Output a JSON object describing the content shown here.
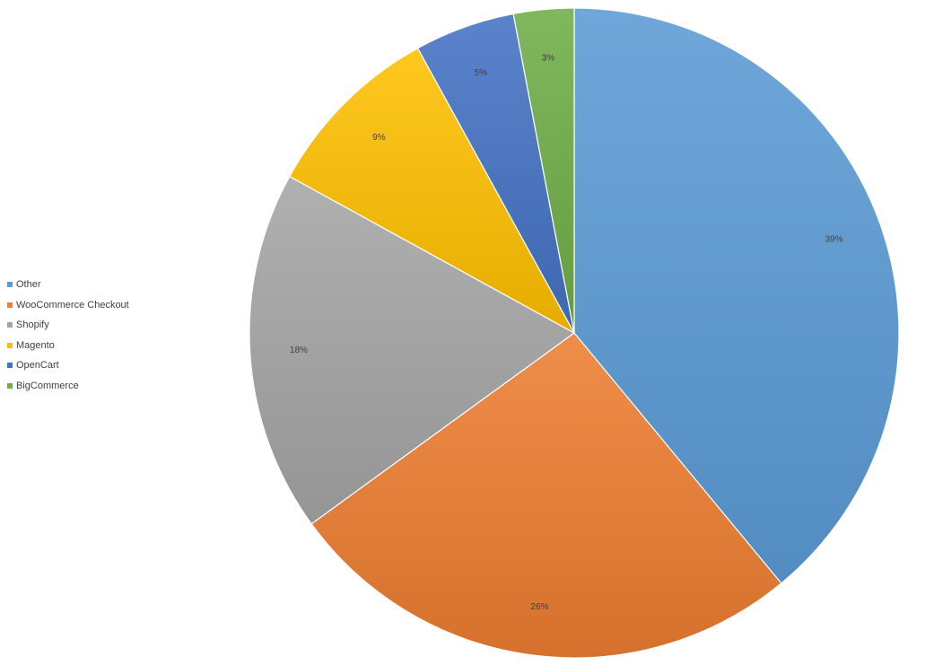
{
  "chart_data": {
    "type": "pie",
    "categories": [
      "Other",
      "WooCommerce Checkout",
      "Shopify",
      "Magento",
      "OpenCart",
      "BigCommerce"
    ],
    "values": [
      39,
      26,
      18,
      9,
      5,
      3
    ],
    "labels": [
      "39%",
      "26%",
      "18%",
      "9%",
      "5%",
      "3%"
    ],
    "colors": [
      "#5b9bd5",
      "#ed7d31",
      "#a5a5a5",
      "#ffc000",
      "#4472c4",
      "#70ad47"
    ],
    "legend_placement": "left",
    "start_angle": "12 o'clock",
    "direction": "clockwise",
    "title": "",
    "xlabel": "",
    "ylabel": ""
  }
}
